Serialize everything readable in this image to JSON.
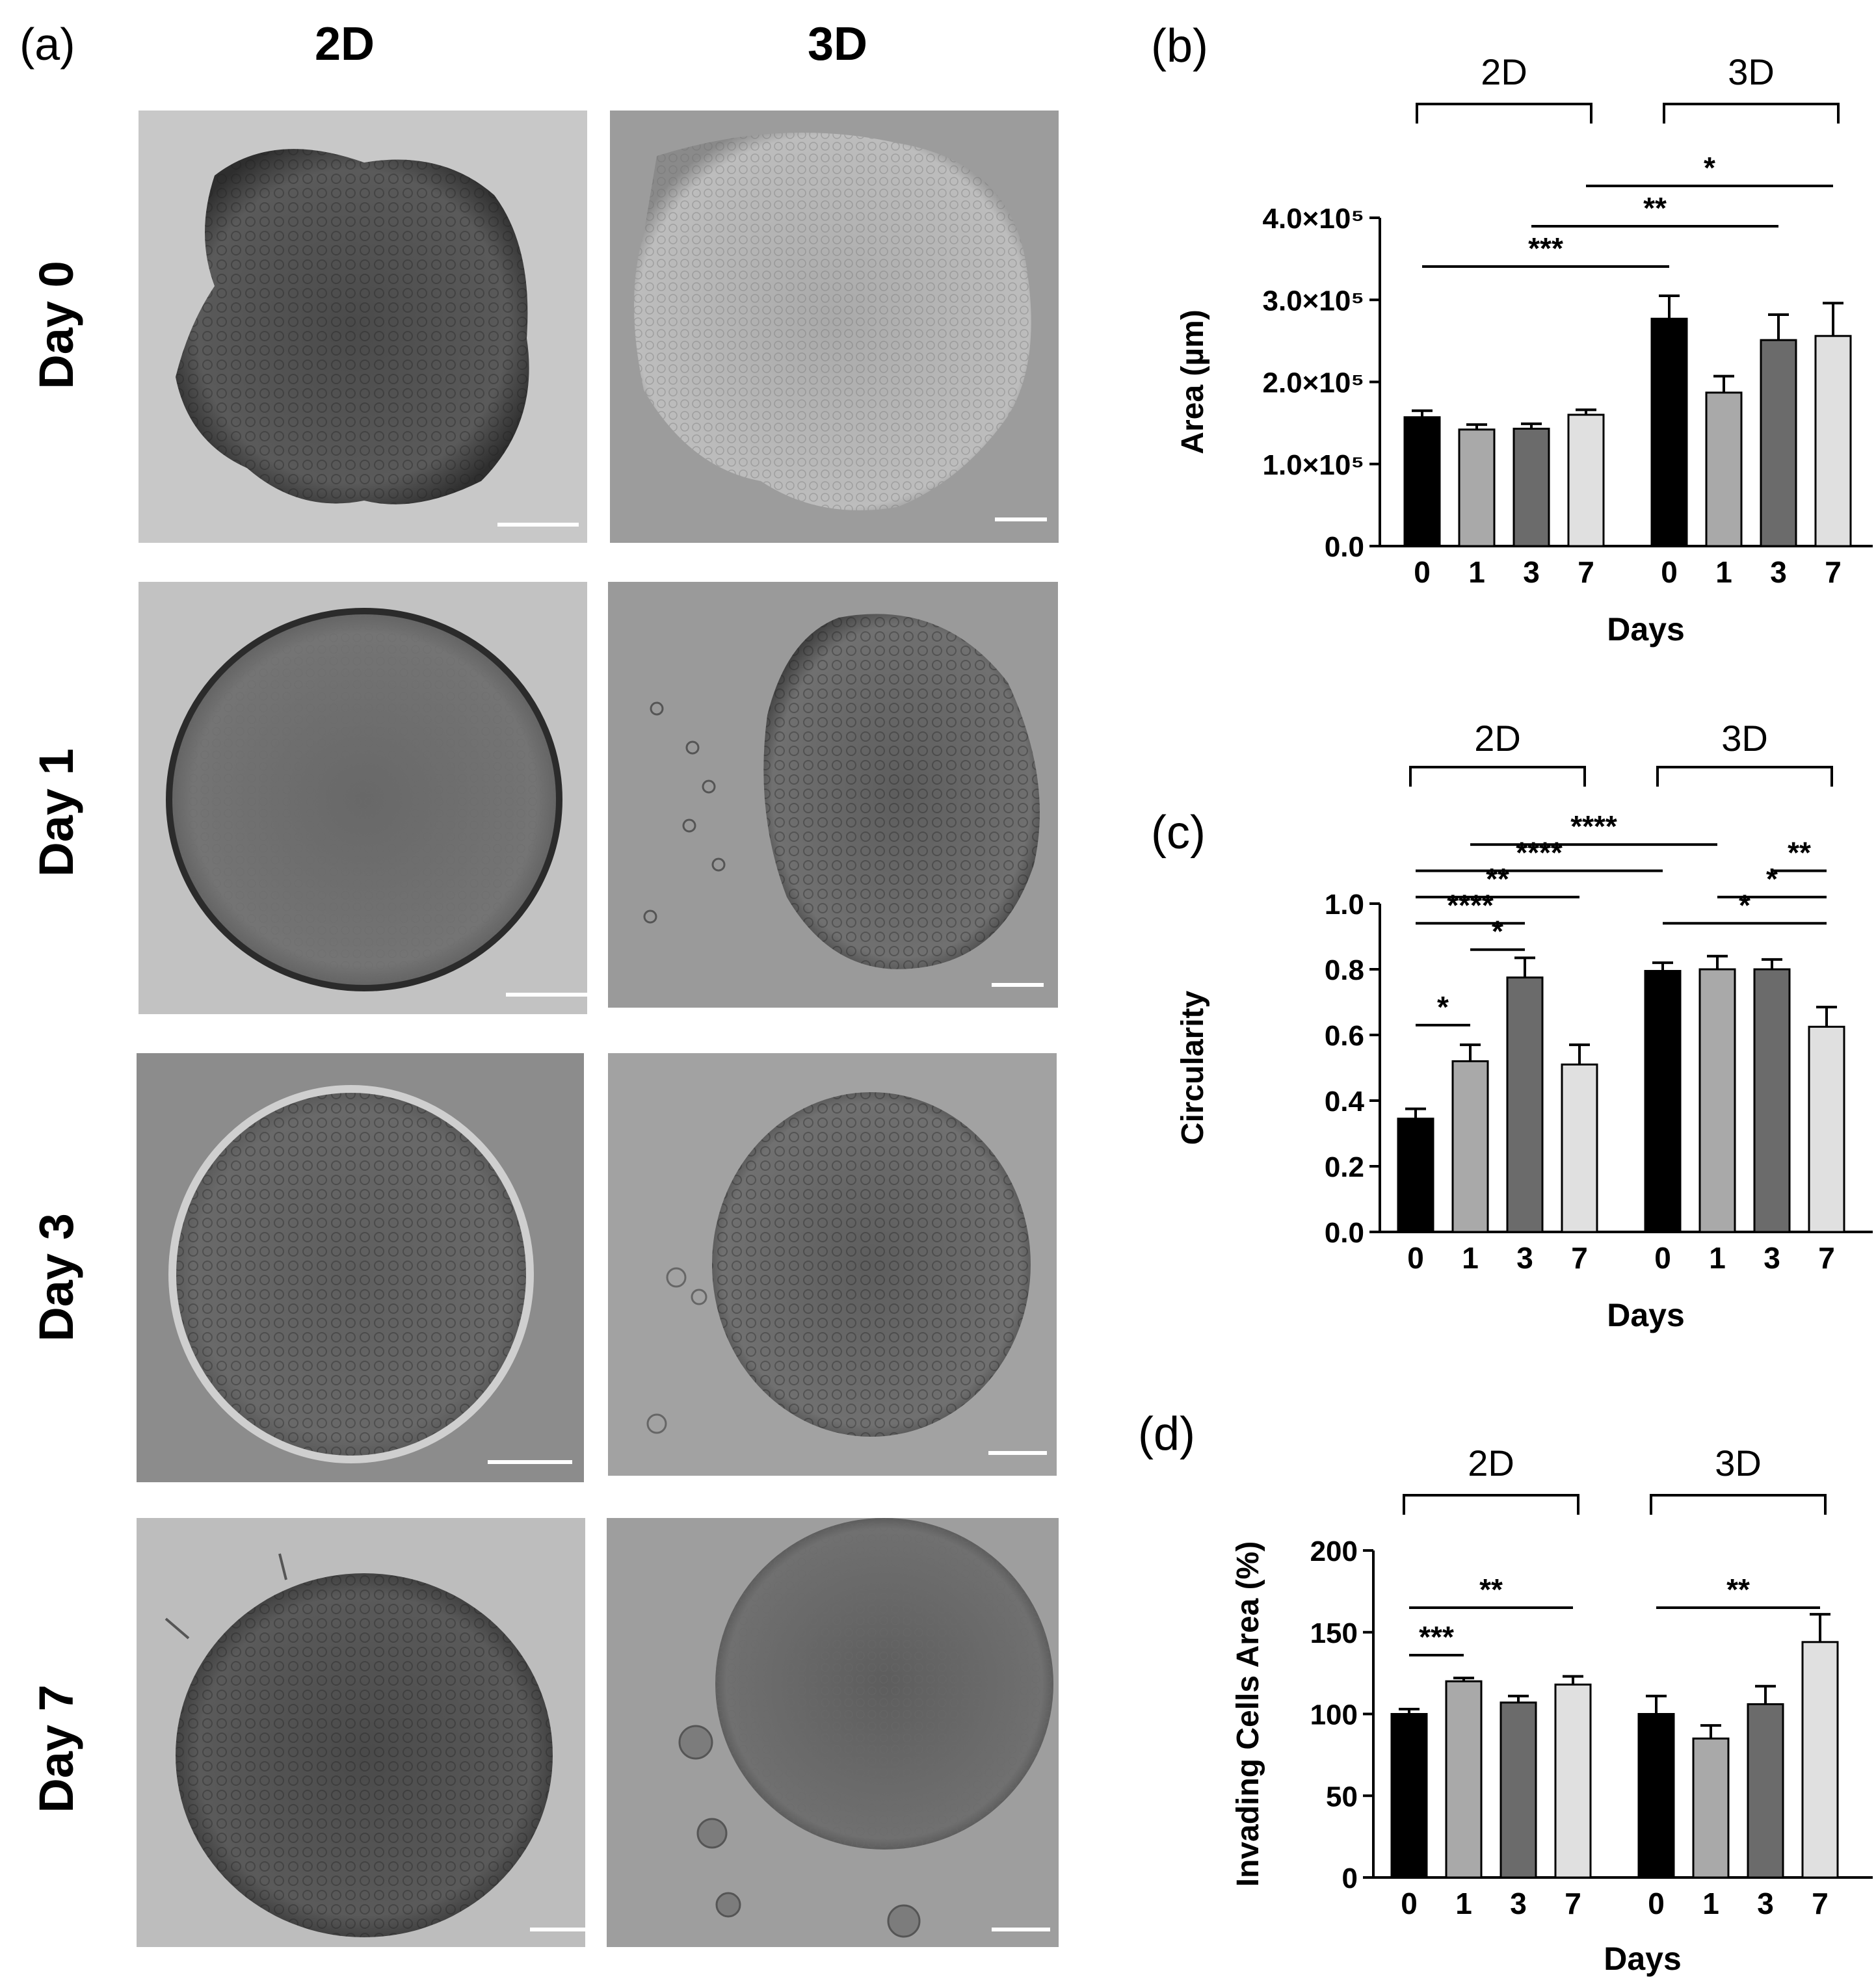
{
  "panel_a": {
    "label": "(a)",
    "col_headers": [
      "2D",
      "3D"
    ],
    "row_labels": [
      "Day 0",
      "Day 1",
      "Day 3",
      "Day 7"
    ]
  },
  "chart_data": [
    {
      "panel_label": "(b)",
      "type": "bar",
      "ylabel": "Area (µm)",
      "xlabel": "Days",
      "ylim": [
        0,
        400000
      ],
      "yticks": [
        "0.0",
        "1.0×10⁵",
        "2.0×10⁵",
        "3.0×10⁵",
        "4.0×10⁵"
      ],
      "ytick_values": [
        0,
        100000,
        200000,
        300000,
        400000
      ],
      "groups": [
        {
          "name": "2D",
          "categories": [
            "0",
            "1",
            "3",
            "7"
          ],
          "values": [
            157000,
            142000,
            143000,
            160000
          ],
          "errors": [
            8000,
            6000,
            6000,
            6000
          ]
        },
        {
          "name": "3D",
          "categories": [
            "0",
            "1",
            "3",
            "7"
          ],
          "values": [
            277000,
            187000,
            251000,
            256000
          ],
          "errors": [
            28000,
            20000,
            31000,
            40000
          ]
        }
      ],
      "bar_colors": [
        "#000000",
        "#a9a9a9",
        "#6b6b6b",
        "#e0e0e0"
      ],
      "significance": [
        {
          "label": "***",
          "from": [
            0,
            0
          ],
          "to": [
            1,
            0
          ],
          "level": 0
        },
        {
          "label": "**",
          "from": [
            0,
            2
          ],
          "to": [
            1,
            2
          ],
          "level": 1
        },
        {
          "label": "*",
          "from": [
            0,
            3
          ],
          "to": [
            1,
            3
          ],
          "level": 2
        }
      ]
    },
    {
      "panel_label": "(c)",
      "type": "bar",
      "ylabel": "Circularity",
      "xlabel": "Days",
      "ylim": [
        0,
        1
      ],
      "yticks": [
        "0.0",
        "0.2",
        "0.4",
        "0.6",
        "0.8",
        "1.0"
      ],
      "ytick_values": [
        0,
        0.2,
        0.4,
        0.6,
        0.8,
        1.0
      ],
      "groups": [
        {
          "name": "2D",
          "categories": [
            "0",
            "1",
            "3",
            "7"
          ],
          "values": [
            0.345,
            0.52,
            0.775,
            0.51
          ],
          "errors": [
            0.03,
            0.05,
            0.06,
            0.06
          ]
        },
        {
          "name": "3D",
          "categories": [
            "0",
            "1",
            "3",
            "7"
          ],
          "values": [
            0.795,
            0.8,
            0.8,
            0.625
          ],
          "errors": [
            0.025,
            0.04,
            0.03,
            0.06
          ]
        }
      ],
      "bar_colors": [
        "#000000",
        "#a9a9a9",
        "#6b6b6b",
        "#e0e0e0"
      ],
      "significance": [
        {
          "label": "*",
          "from": [
            0,
            0
          ],
          "to": [
            0,
            1
          ],
          "y": 0.63
        },
        {
          "label": "*",
          "from": [
            0,
            1
          ],
          "to": [
            0,
            2
          ],
          "y": 0.86
        },
        {
          "label": "****",
          "from": [
            0,
            0
          ],
          "to": [
            0,
            2
          ],
          "y": 0.94
        },
        {
          "label": "**",
          "from": [
            0,
            0
          ],
          "to": [
            0,
            3
          ],
          "y": 1.02
        },
        {
          "label": "****",
          "from": [
            0,
            0
          ],
          "to": [
            1,
            0
          ],
          "y": 1.1
        },
        {
          "label": "****",
          "from": [
            0,
            1
          ],
          "to": [
            1,
            1
          ],
          "y": 1.18
        },
        {
          "label": "*",
          "from": [
            1,
            0
          ],
          "to": [
            1,
            3
          ],
          "y": 0.94
        },
        {
          "label": "*",
          "from": [
            1,
            1
          ],
          "to": [
            1,
            3
          ],
          "y": 1.02
        },
        {
          "label": "**",
          "from": [
            1,
            2
          ],
          "to": [
            1,
            3
          ],
          "y": 1.1
        }
      ]
    },
    {
      "panel_label": "(d)",
      "type": "bar",
      "ylabel": "Invading Cells Area (%)",
      "xlabel": "Days",
      "ylim": [
        0,
        200
      ],
      "yticks": [
        "0",
        "50",
        "100",
        "150",
        "200"
      ],
      "ytick_values": [
        0,
        50,
        100,
        150,
        200
      ],
      "groups": [
        {
          "name": "2D",
          "categories": [
            "0",
            "1",
            "3",
            "7"
          ],
          "values": [
            100,
            120,
            107,
            118
          ],
          "errors": [
            3,
            2,
            4,
            5
          ]
        },
        {
          "name": "3D",
          "categories": [
            "0",
            "1",
            "3",
            "7"
          ],
          "values": [
            100,
            85,
            106,
            144
          ],
          "errors": [
            11,
            8,
            11,
            17
          ]
        }
      ],
      "bar_colors": [
        "#000000",
        "#a9a9a9",
        "#6b6b6b",
        "#e0e0e0"
      ],
      "significance": [
        {
          "label": "***",
          "from": [
            0,
            0
          ],
          "to": [
            0,
            1
          ],
          "y": 136
        },
        {
          "label": "**",
          "from": [
            0,
            0
          ],
          "to": [
            0,
            3
          ],
          "y": 165
        },
        {
          "label": "**",
          "from": [
            1,
            0
          ],
          "to": [
            1,
            3
          ],
          "y": 165
        }
      ]
    }
  ]
}
